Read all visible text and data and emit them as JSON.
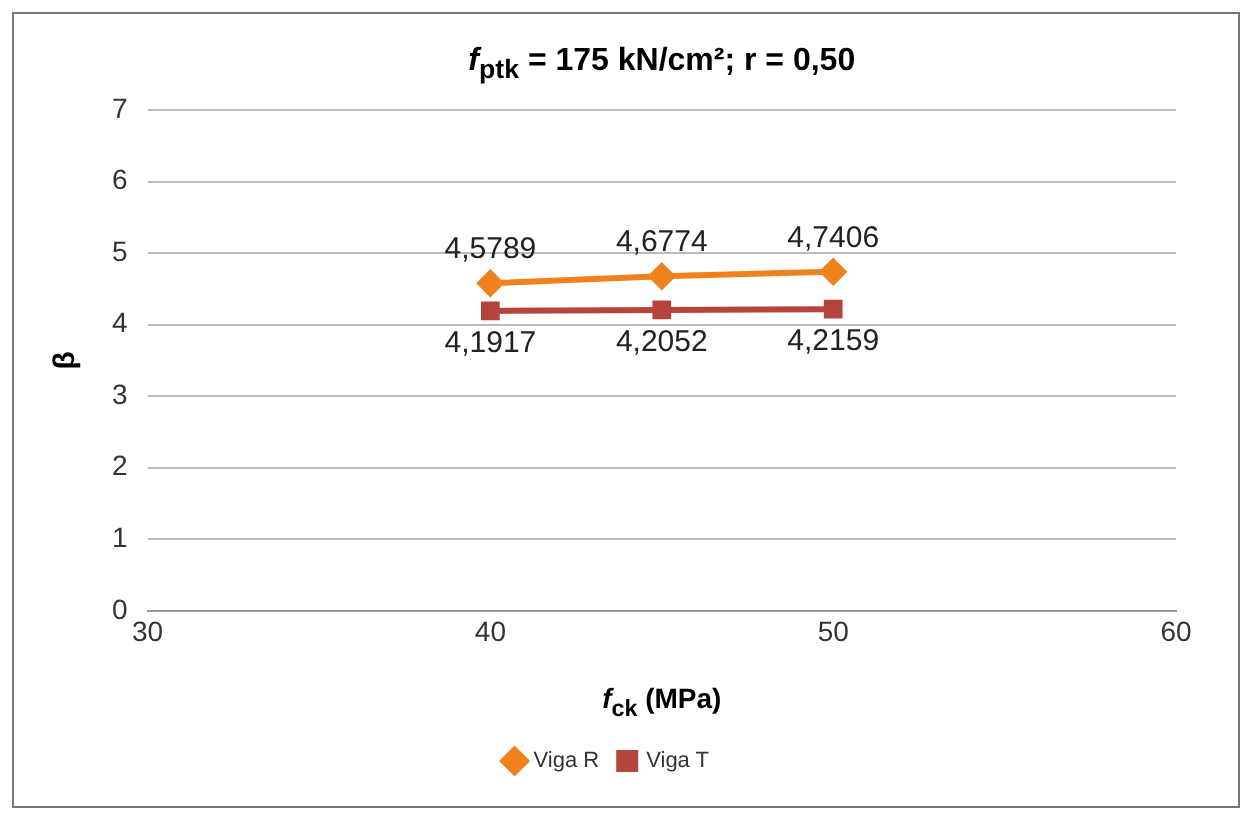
{
  "chart_data": {
    "type": "line",
    "title": "f$_{ptk}$ = 175 kN/cm²; r = 0,50",
    "xlabel": "f$_{ck}$ (MPa)",
    "ylabel": "β",
    "x": [
      40,
      45,
      50
    ],
    "xlim": [
      30,
      60
    ],
    "xticks": [
      30,
      40,
      50,
      60
    ],
    "ylim": [
      0,
      7
    ],
    "yticks": [
      0,
      1,
      2,
      3,
      4,
      5,
      6,
      7
    ],
    "grid": "y",
    "legend": "bottom",
    "series": [
      {
        "name": "Viga R",
        "color": "#f0821e",
        "marker": "diamond",
        "values": [
          4.5789,
          4.6774,
          4.7406
        ],
        "value_labels": [
          "4,5789",
          "4,6774",
          "4,7406"
        ]
      },
      {
        "name": "Viga T",
        "color": "#b5443c",
        "marker": "square",
        "values": [
          4.1917,
          4.2052,
          4.2159
        ],
        "value_labels": [
          "4,1917",
          "4,2052",
          "4,2159"
        ]
      }
    ]
  }
}
